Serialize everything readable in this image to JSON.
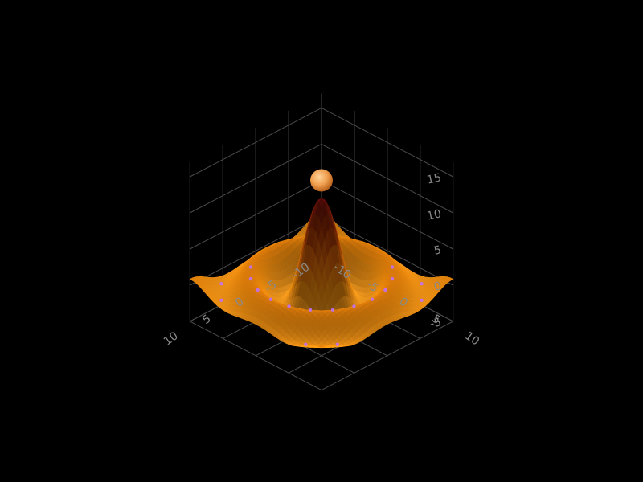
{
  "chart_data": {
    "type": "surface",
    "title": "",
    "function": "z = 12 * sin(r) / r, r = sqrt(x^2 + y^2)",
    "x": {
      "label": "",
      "range": [
        -10,
        10
      ],
      "ticks": [
        -10,
        -5,
        0,
        5,
        10
      ]
    },
    "y": {
      "label": "",
      "range": [
        -10,
        10
      ],
      "ticks": [
        -10,
        -5,
        0,
        5,
        10
      ]
    },
    "z": {
      "label": "",
      "range": [
        -5,
        15
      ],
      "ticks": [
        -5,
        0,
        5,
        10,
        15
      ]
    },
    "z_samples": [
      {
        "r": 0,
        "z": 12.0
      },
      {
        "r": 4.5,
        "z": -2.6
      },
      {
        "r": 7.7,
        "z": 1.5
      },
      {
        "r": 10.9,
        "z": -1.1
      },
      {
        "r": 14.1,
        "z": 0.8
      }
    ],
    "colorscale": [
      "#5a0a0a",
      "#8a2a06",
      "#c25a08",
      "#e0820c",
      "#f09a20"
    ],
    "highlight_color": "#c070ff",
    "marker": {
      "x": 0,
      "y": 0,
      "z": 14.5,
      "color": "#f0a050"
    },
    "grid": true,
    "background": "#000000",
    "x_tick_labels": [
      "-10",
      "-5",
      "0",
      "5",
      "10"
    ],
    "y_tick_labels": [
      "-10",
      "-5",
      "0",
      "5",
      "10"
    ],
    "z_tick_labels": [
      "-5",
      "0",
      "5",
      "10",
      "15"
    ]
  }
}
